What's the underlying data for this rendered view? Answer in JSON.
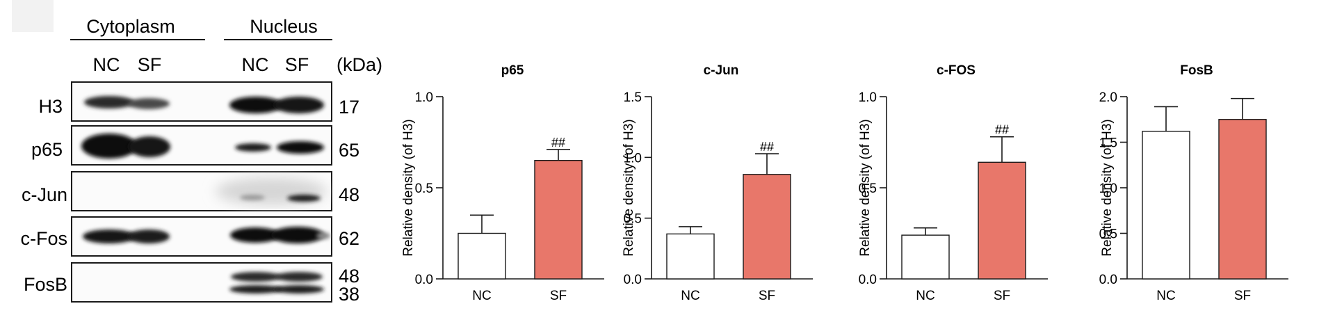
{
  "western_blot": {
    "groups": [
      {
        "label": "Cytoplasm",
        "lanes": [
          "NC",
          "SF"
        ]
      },
      {
        "label": "Nucleus",
        "lanes": [
          "NC",
          "SF"
        ]
      }
    ],
    "kda_label": "(kDa)",
    "rows": [
      {
        "protein": "H3",
        "kda": [
          "17"
        ]
      },
      {
        "protein": "p65",
        "kda": [
          "65"
        ]
      },
      {
        "protein": "c-Jun",
        "kda": [
          "48"
        ]
      },
      {
        "protein": "c-Fos",
        "kda": [
          "62"
        ]
      },
      {
        "protein": "FosB",
        "kda": [
          "48",
          "38"
        ]
      }
    ]
  },
  "colors": {
    "nc_fill": "#ffffff",
    "sf_fill": "#e8776a",
    "stroke": "#1a1a1a"
  },
  "chart_data": [
    {
      "type": "bar",
      "title": "p65",
      "categories": [
        "NC",
        "SF"
      ],
      "values": [
        0.25,
        0.65
      ],
      "errors": [
        0.1,
        0.06
      ],
      "ylabel": "Relative density (of H3)",
      "ylim": [
        0,
        1.0
      ],
      "yticks": [
        "0.0",
        "0.5",
        "1.0"
      ],
      "annotations": [
        {
          "category": "SF",
          "text": "##"
        }
      ]
    },
    {
      "type": "bar",
      "title": "c-Jun",
      "categories": [
        "NC",
        "SF"
      ],
      "values": [
        0.37,
        0.86
      ],
      "errors": [
        0.06,
        0.17
      ],
      "ylabel": "Relative density (of H3)",
      "ylim": [
        0,
        1.5
      ],
      "yticks": [
        "0.0",
        "0.5",
        "1.0",
        "1.5"
      ],
      "annotations": [
        {
          "category": "SF",
          "text": "##"
        }
      ]
    },
    {
      "type": "bar",
      "title": "c-FOS",
      "categories": [
        "NC",
        "SF"
      ],
      "values": [
        0.24,
        0.64
      ],
      "errors": [
        0.04,
        0.14
      ],
      "ylabel": "Relative density (of H3)",
      "ylim": [
        0,
        1.0
      ],
      "yticks": [
        "0.0",
        "0.5",
        "1.0"
      ],
      "annotations": [
        {
          "category": "SF",
          "text": "##"
        }
      ]
    },
    {
      "type": "bar",
      "title": "FosB",
      "categories": [
        "NC",
        "SF"
      ],
      "values": [
        1.62,
        1.75
      ],
      "errors": [
        0.27,
        0.23
      ],
      "ylabel": "Relative density (of H3)",
      "ylim": [
        0,
        2.0
      ],
      "yticks": [
        "0.0",
        "0.5",
        "1.0",
        "1.5",
        "2.0"
      ],
      "annotations": []
    }
  ]
}
